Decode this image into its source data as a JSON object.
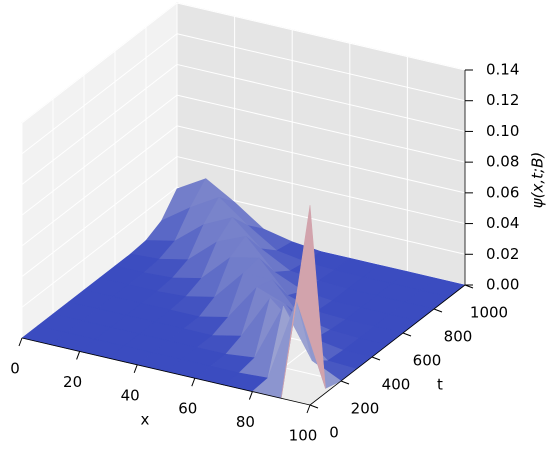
{
  "chart_data": {
    "type": "surface",
    "xlabel": "x",
    "ylabel": "t",
    "zlabel": "ψ(x,t;B)",
    "x": [
      0,
      10,
      20,
      30,
      40,
      50,
      60,
      70,
      80,
      90,
      100
    ],
    "y": [
      0,
      100,
      200,
      300,
      400,
      500,
      600,
      700,
      800,
      900,
      1000
    ],
    "z": [
      [
        0,
        0,
        0,
        0,
        0,
        0,
        0,
        0,
        0,
        0,
        0.13
      ],
      [
        0,
        0,
        0,
        0,
        0,
        0,
        0,
        0,
        0.001,
        0.056,
        0.003
      ],
      [
        0,
        0,
        0,
        0,
        0,
        0,
        0,
        0.002,
        0.04,
        0.009,
        0
      ],
      [
        0,
        0,
        0,
        0,
        0,
        0,
        0.004,
        0.033,
        0.017,
        0.001,
        0
      ],
      [
        0,
        0,
        0,
        0,
        0,
        0.004,
        0.028,
        0.021,
        0.003,
        0,
        0
      ],
      [
        0,
        0,
        0,
        0.001,
        0.005,
        0.025,
        0.025,
        0.005,
        0.001,
        0,
        0
      ],
      [
        0,
        0,
        0.001,
        0.005,
        0.023,
        0.027,
        0.007,
        0.001,
        0,
        0,
        0
      ],
      [
        0,
        0.001,
        0.005,
        0.021,
        0.029,
        0.01,
        0.002,
        0,
        0,
        0,
        0
      ],
      [
        0.001,
        0.005,
        0.02,
        0.029,
        0.013,
        0.003,
        0.001,
        0,
        0,
        0,
        0
      ],
      [
        0.006,
        0.019,
        0.03,
        0.016,
        0.004,
        0.001,
        0,
        0,
        0,
        0,
        0
      ],
      [
        0.019,
        0.03,
        0.019,
        0.006,
        0.002,
        0,
        0,
        0,
        0,
        0,
        0
      ]
    ],
    "colormap": [
      "#3b4cc0",
      "#dddddd",
      "#b40426"
    ],
    "xlim": [
      0,
      100
    ],
    "ylim": [
      0,
      1000
    ],
    "zlim": [
      0,
      0.14
    ],
    "xticks": [
      0,
      20,
      40,
      60,
      80,
      100
    ],
    "yticks": [
      0,
      200,
      400,
      600,
      800,
      1000
    ],
    "zticks": [
      {
        "value": 0,
        "label": "0.00"
      },
      {
        "value": 0.02,
        "label": "0.02"
      },
      {
        "value": 0.04,
        "label": "0.04"
      },
      {
        "value": 0.06,
        "label": "0.06"
      },
      {
        "value": 0.08,
        "label": "0.08"
      },
      {
        "value": 0.1,
        "label": "0.10"
      },
      {
        "value": 0.12,
        "label": "0.12"
      },
      {
        "value": 0.14,
        "label": "0.14"
      }
    ],
    "grid": true
  }
}
